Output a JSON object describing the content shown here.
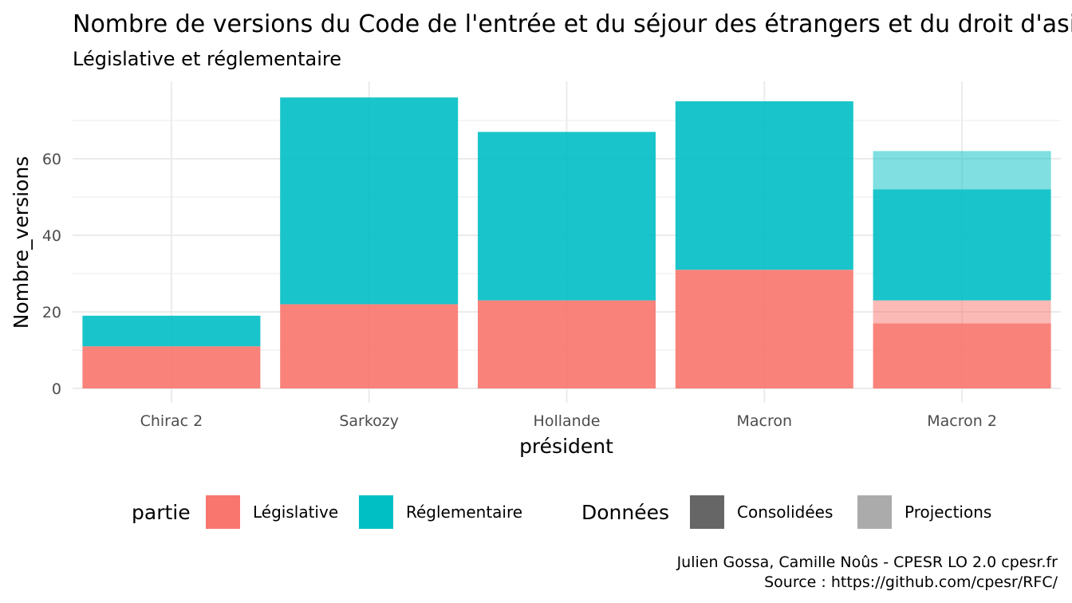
{
  "chart_data": {
    "type": "bar",
    "stacked": true,
    "title": "Nombre de versions du Code de l'entrée et du séjour des étrangers et du droit d'asile",
    "subtitle": "Législative et réglementaire",
    "xlabel": "président",
    "ylabel": "Nombre_versions",
    "categories": [
      "Chirac 2",
      "Sarkozy",
      "Hollande",
      "Macron",
      "Macron 2"
    ],
    "y_ticks": [
      0,
      20,
      40,
      60
    ],
    "ylim": [
      0,
      79
    ],
    "grid": true,
    "legend_position": "bottom",
    "series": [
      {
        "name": "Législative",
        "donnees": "Consolidées",
        "color": "#F8766D",
        "values": [
          11,
          22,
          23,
          31,
          17
        ]
      },
      {
        "name": "Législative",
        "donnees": "Projections",
        "color": "#F8766D",
        "values": [
          0,
          0,
          0,
          0,
          6
        ]
      },
      {
        "name": "Réglementaire",
        "donnees": "Consolidées",
        "color": "#00BFC4",
        "values": [
          8,
          54,
          44,
          44,
          29
        ]
      },
      {
        "name": "Réglementaire",
        "donnees": "Projections",
        "color": "#00BFC4",
        "values": [
          0,
          0,
          0,
          0,
          10
        ]
      }
    ],
    "legends": [
      {
        "title": "partie",
        "items": [
          {
            "label": "Législative",
            "color": "#F8766D"
          },
          {
            "label": "Réglementaire",
            "color": "#00BFC4"
          }
        ]
      },
      {
        "title": "Données",
        "items": [
          {
            "label": "Consolidées",
            "color": "#666666"
          },
          {
            "label": "Projections",
            "color": "#ababab"
          }
        ]
      }
    ],
    "caption": [
      "Julien Gossa, Camille Noûs - CPESR LO 2.0 cpesr.fr",
      "Source : https://github.com/cpesr/RFC/"
    ]
  }
}
